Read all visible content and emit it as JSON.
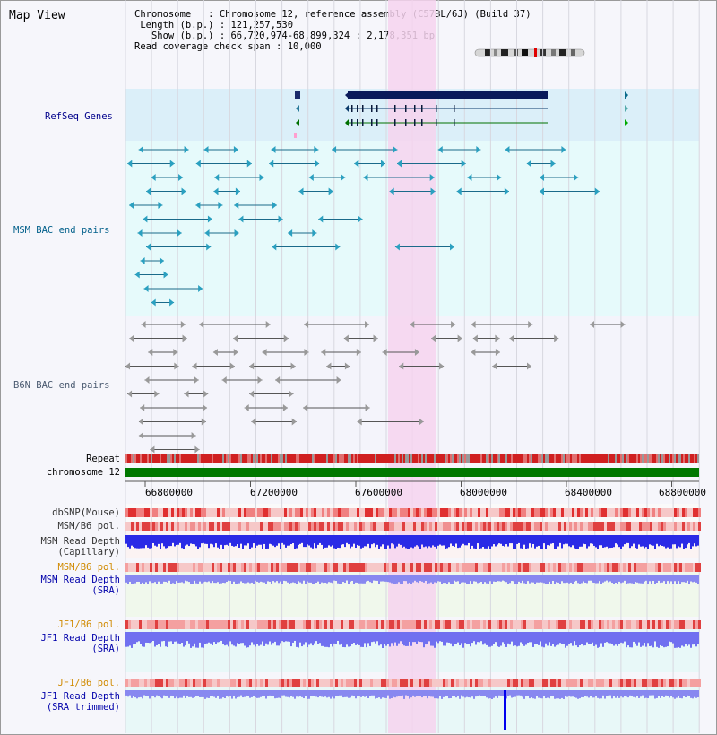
{
  "header": {
    "title": "Map View",
    "chromosome_label": "Chromosome",
    "chromosome_value": "Chromosome 12, reference assembly (C57BL/6J) (Build 37)",
    "length_label": "Length (b.p.)",
    "length_value": "121,257,530",
    "show_label": "Show (b.p.)",
    "show_value": "66,720,974-68,899,324 : 2,178,351 bp",
    "coverage_label": "Read coverage check span",
    "coverage_value": "10,000"
  },
  "tracks": {
    "refseq": "RefSeq Genes",
    "msm_bac": "MSM BAC end pairs",
    "b6n_bac": "B6N BAC end pairs",
    "repeat": "Repeat",
    "chromosome": "chromosome 12",
    "dbsnp": "dbSNP(Mouse)",
    "msm_b6_pol_1": "MSM/B6 pol.",
    "msm_read_depth_cap_1": "MSM Read Depth",
    "msm_read_depth_cap_2": "(Capillary)",
    "msm_b6_pol_2": "MSM/B6 pol.",
    "msm_read_depth_sra_1": "MSM Read Depth",
    "msm_read_depth_sra_2": "(SRA)",
    "jf1_b6_pol_1": "JF1/B6 pol.",
    "jf1_read_depth_sra_1": "JF1 Read Depth",
    "jf1_read_depth_sra_2": "(SRA)",
    "jf1_b6_pol_2": "JF1/B6 pol.",
    "jf1_read_depth_trim_1": "JF1 Read Depth",
    "jf1_read_depth_trim_2": "(SRA trimmed)"
  },
  "axis": {
    "ticks": [
      "66800000",
      "67200000",
      "67600000",
      "68000000",
      "68400000",
      "68800000"
    ]
  },
  "colors": {
    "refseq_label": "#00008b",
    "msm_label": "#005f8a",
    "b6n_label": "#4a5a70",
    "orange_label": "#d08a00",
    "blue_label": "#0000aa",
    "highlight": "#f6d4ef",
    "chromosome_bar": "#007800"
  }
}
